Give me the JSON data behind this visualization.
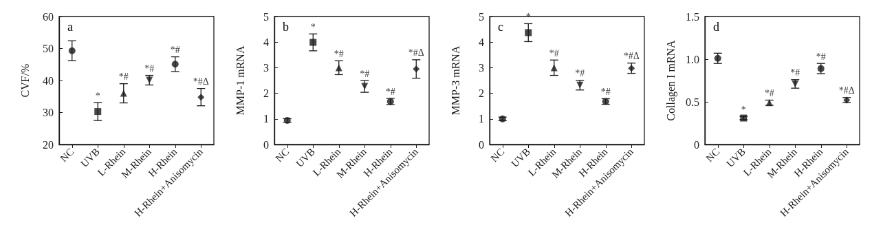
{
  "chart_data": [
    {
      "type": "scatter",
      "ylabel": "CVF/%",
      "categories": [
        "NC",
        "UVB",
        "L-Rhein",
        "M-Rhein",
        "H-Rhein",
        "H-Rhein+Anisomycin"
      ],
      "ylim": [
        20,
        60
      ],
      "yticks": [
        20,
        30,
        40,
        50,
        60
      ],
      "grid": false,
      "series": [
        {
          "color": "#1a1a1a",
          "marker": "circle",
          "values": [
            49.3,
            null,
            null,
            null,
            null,
            null
          ],
          "errors": [
            3.1,
            null,
            null,
            null,
            null,
            null
          ]
        },
        {
          "color": "#1a1a1a",
          "marker": "square",
          "values": [
            null,
            30.3,
            null,
            null,
            null,
            null
          ],
          "errors": [
            null,
            2.8,
            null,
            null,
            null,
            null
          ]
        },
        {
          "color": "#1a1a1a",
          "marker": "triangle",
          "values": [
            null,
            null,
            36.0,
            null,
            null,
            null
          ],
          "errors": [
            null,
            null,
            3.0,
            null,
            null,
            null
          ]
        },
        {
          "color": "#1a1a1a",
          "marker": "triangle-down",
          "values": [
            null,
            null,
            null,
            40.1,
            null,
            null
          ],
          "errors": [
            null,
            null,
            null,
            1.5,
            null,
            null
          ]
        },
        {
          "color": "#1a1a1a",
          "marker": "circle",
          "values": [
            null,
            null,
            null,
            null,
            45.1,
            null
          ],
          "errors": [
            null,
            null,
            null,
            null,
            2.3,
            null
          ]
        },
        {
          "color": "#1a1a1a",
          "marker": "diamond",
          "values": [
            null,
            null,
            null,
            null,
            null,
            34.8
          ],
          "errors": [
            null,
            null,
            null,
            null,
            null,
            2.7
          ]
        }
      ],
      "annotations": [
        "a",
        {
          "text": "*",
          "x": "UVB",
          "y": 33.1
        },
        {
          "text": "*#",
          "x": "L-Rhein",
          "y": 39.0
        },
        {
          "text": "*#",
          "x": "M-Rhein",
          "y": 41.6
        },
        {
          "text": "*#",
          "x": "H-Rhein",
          "y": 47.4
        },
        {
          "text": "*#Δ",
          "x": "H-Rhein+Anisomycin",
          "y": 37.5
        }
      ]
    },
    {
      "type": "scatter",
      "ylabel": "MMP-1 mRNA",
      "categories": [
        "NC",
        "UVB",
        "L-Rhein",
        "M-Rhein",
        "H-Rhein",
        "H-Rhein+Anisomycin"
      ],
      "ylim": [
        0,
        5
      ],
      "yticks": [
        0,
        1,
        2,
        3,
        4,
        5
      ],
      "grid": false,
      "series": [
        {
          "color": "#1a1a1a",
          "marker": "circle",
          "values": [
            0.94,
            null,
            null,
            null,
            null,
            null
          ],
          "errors": [
            0.07,
            null,
            null,
            null,
            null,
            null
          ]
        },
        {
          "color": "#1a1a1a",
          "marker": "square",
          "values": [
            null,
            3.99,
            null,
            null,
            null,
            null
          ],
          "errors": [
            null,
            0.33,
            null,
            null,
            null,
            null
          ]
        },
        {
          "color": "#1a1a1a",
          "marker": "triangle",
          "values": [
            null,
            null,
            3.0,
            null,
            null,
            null
          ],
          "errors": [
            null,
            null,
            0.27,
            null,
            null,
            null
          ]
        },
        {
          "color": "#1a1a1a",
          "marker": "triangle-down",
          "values": [
            null,
            null,
            null,
            2.27,
            null,
            null
          ],
          "errors": [
            null,
            null,
            null,
            0.23,
            null,
            null
          ]
        },
        {
          "color": "#1a1a1a",
          "marker": "circle",
          "values": [
            null,
            null,
            null,
            null,
            1.68,
            null
          ],
          "errors": [
            null,
            null,
            null,
            null,
            0.12,
            null
          ]
        },
        {
          "color": "#1a1a1a",
          "marker": "diamond",
          "values": [
            null,
            null,
            null,
            null,
            null,
            2.95
          ],
          "errors": [
            null,
            null,
            null,
            null,
            null,
            0.36
          ]
        }
      ],
      "annotations": [
        "b",
        {
          "text": "*",
          "x": "UVB",
          "y": 4.32
        },
        {
          "text": "*#",
          "x": "L-Rhein",
          "y": 3.27
        },
        {
          "text": "*#",
          "x": "M-Rhein",
          "y": 2.5
        },
        {
          "text": "*#",
          "x": "H-Rhein",
          "y": 1.8
        },
        {
          "text": "*#Δ",
          "x": "H-Rhein+Anisomycin",
          "y": 3.31
        }
      ]
    },
    {
      "type": "scatter",
      "ylabel": "MMP-3 mRNA",
      "categories": [
        "NC",
        "UVB",
        "L-Rhein",
        "M-Rhein",
        "H-Rhein",
        "H-Rhein+Anisomycin"
      ],
      "ylim": [
        0,
        5
      ],
      "yticks": [
        0,
        1,
        2,
        3,
        4,
        5
      ],
      "grid": false,
      "series": [
        {
          "color": "#1a1a1a",
          "marker": "circle",
          "values": [
            1.0,
            null,
            null,
            null,
            null,
            null
          ],
          "errors": [
            0.07,
            null,
            null,
            null,
            null,
            null
          ]
        },
        {
          "color": "#1a1a1a",
          "marker": "square",
          "values": [
            null,
            4.37,
            null,
            null,
            null,
            null
          ],
          "errors": [
            null,
            0.35,
            null,
            null,
            null,
            null
          ]
        },
        {
          "color": "#1a1a1a",
          "marker": "triangle",
          "values": [
            null,
            null,
            3.0,
            null,
            null,
            null
          ],
          "errors": [
            null,
            null,
            0.3,
            null,
            null,
            null
          ]
        },
        {
          "color": "#1a1a1a",
          "marker": "triangle-down",
          "values": [
            null,
            null,
            null,
            2.32,
            null,
            null
          ],
          "errors": [
            null,
            null,
            null,
            0.19,
            null,
            null
          ]
        },
        {
          "color": "#1a1a1a",
          "marker": "circle",
          "values": [
            null,
            null,
            null,
            null,
            1.68,
            null
          ],
          "errors": [
            null,
            null,
            null,
            null,
            0.11,
            null
          ]
        },
        {
          "color": "#1a1a1a",
          "marker": "diamond",
          "values": [
            null,
            null,
            null,
            null,
            null,
            2.98
          ],
          "errors": [
            null,
            null,
            null,
            null,
            null,
            0.2
          ]
        }
      ],
      "annotations": [
        "c",
        {
          "text": "*",
          "x": "UVB",
          "y": 4.72
        },
        {
          "text": "*#",
          "x": "L-Rhein",
          "y": 3.3
        },
        {
          "text": "*#",
          "x": "M-Rhein",
          "y": 2.51
        },
        {
          "text": "*#",
          "x": "H-Rhein",
          "y": 1.79
        },
        {
          "text": "*#Δ",
          "x": "H-Rhein+Anisomycin",
          "y": 3.18
        }
      ]
    },
    {
      "type": "scatter",
      "ylabel": "Collagen I mRNA",
      "categories": [
        "NC",
        "UVB",
        "L-Rhein",
        "M-Rhein",
        "H-Rhein",
        "H-Rhein+Anisomycin"
      ],
      "ylim": [
        0,
        1.5
      ],
      "yticks": [
        0,
        0.5,
        {
          "value": 1,
          "label": "1.0"
        },
        1.5
      ],
      "grid": false,
      "series": [
        {
          "color": "#1a1a1a",
          "marker": "circle",
          "values": [
            1.01,
            null,
            null,
            null,
            null,
            null
          ],
          "errors": [
            0.06,
            null,
            null,
            null,
            null,
            null
          ]
        },
        {
          "color": "#1a1a1a",
          "marker": "square",
          "values": [
            null,
            0.31,
            null,
            null,
            null,
            null
          ],
          "errors": [
            null,
            0.02,
            null,
            null,
            null,
            null
          ]
        },
        {
          "color": "#1a1a1a",
          "marker": "triangle",
          "values": [
            null,
            null,
            0.49,
            null,
            null,
            null
          ],
          "errors": [
            null,
            null,
            0.03,
            null,
            null,
            null
          ]
        },
        {
          "color": "#1a1a1a",
          "marker": "triangle-down",
          "values": [
            null,
            null,
            null,
            0.71,
            null,
            null
          ],
          "errors": [
            null,
            null,
            null,
            0.05,
            null,
            null
          ]
        },
        {
          "color": "#1a1a1a",
          "marker": "circle",
          "values": [
            null,
            null,
            null,
            null,
            0.89,
            null
          ],
          "errors": [
            null,
            null,
            null,
            null,
            0.06,
            null
          ]
        },
        {
          "color": "#1a1a1a",
          "marker": "diamond",
          "values": [
            null,
            null,
            null,
            null,
            null,
            0.52
          ],
          "errors": [
            null,
            null,
            null,
            null,
            null,
            0.03
          ]
        }
      ],
      "annotations": [
        "d",
        {
          "text": "*",
          "x": "UVB",
          "y": 0.33
        },
        {
          "text": "*#",
          "x": "L-Rhein",
          "y": 0.52
        },
        {
          "text": "*#",
          "x": "M-Rhein",
          "y": 0.76
        },
        {
          "text": "*#",
          "x": "H-Rhein",
          "y": 0.95
        },
        {
          "text": "*#Δ",
          "x": "H-Rhein+Anisomycin",
          "y": 0.55
        }
      ]
    }
  ]
}
